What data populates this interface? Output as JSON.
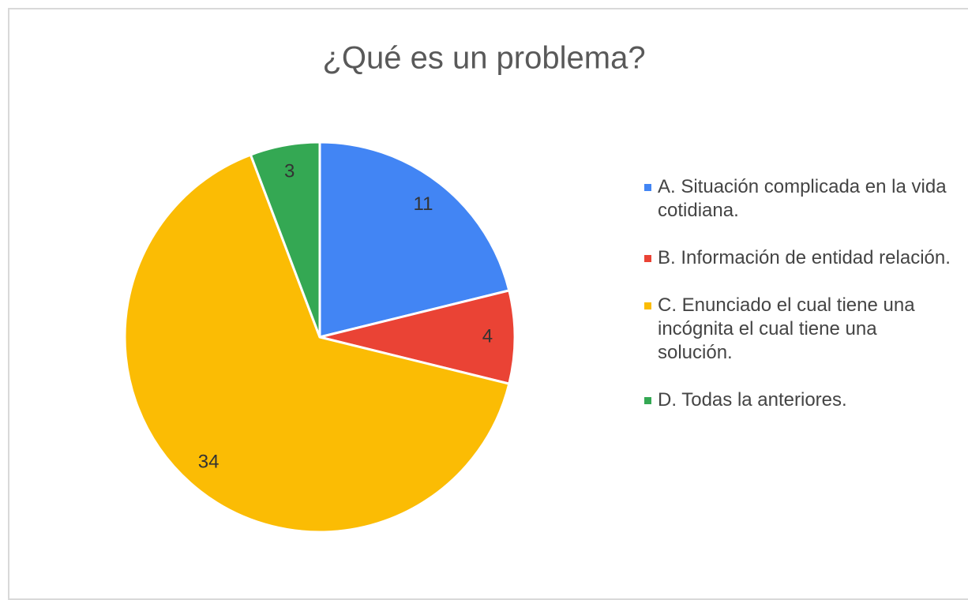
{
  "chart_data": {
    "type": "pie",
    "title": "¿Qué es un problema?",
    "categories": [
      "A. Situación complicada en la vida cotidiana.",
      "B. Información de entidad relación.",
      "C. Enunciado el cual tiene una incógnita el cual tiene una solución.",
      "D. Todas la anteriores."
    ],
    "values": [
      11,
      4,
      34,
      3
    ],
    "colors": [
      "#4285f4",
      "#ea4335",
      "#fbbc04",
      "#34a853"
    ]
  }
}
